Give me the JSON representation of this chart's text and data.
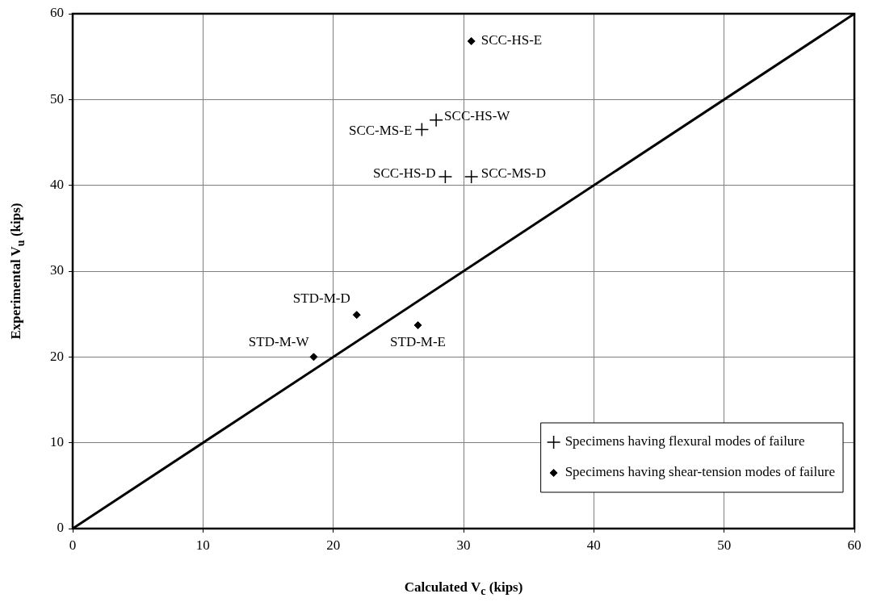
{
  "chart_data": {
    "type": "scatter",
    "xlabel": "Calculated V$_{c}$ (kips)",
    "ylabel": "Experimental V$_{u}$ (kips)",
    "xlim": [
      0,
      60
    ],
    "ylim": [
      0,
      60
    ],
    "xticks": [
      0,
      10,
      20,
      30,
      40,
      50,
      60
    ],
    "yticks": [
      0,
      10,
      20,
      30,
      40,
      50,
      60
    ],
    "grid": true,
    "legend": "bottom right",
    "series": [
      {
        "name": "Specimens having flexural modes of failure",
        "color": "#000000",
        "marker": "cross",
        "x": [
          27.9,
          26.8,
          28.6,
          30.6
        ],
        "values": [
          47.6,
          46.5,
          41.0,
          41.0
        ]
      },
      {
        "name": "Specimens having shear-tension modes of failure",
        "color": "#000000",
        "marker": "diamond",
        "x": [
          30.6,
          21.8,
          26.5,
          18.5
        ],
        "values": [
          56.8,
          24.9,
          23.7,
          20.0
        ]
      },
      {
        "type": "line",
        "color": "#000000",
        "marker": "none",
        "x": [
          0,
          60
        ],
        "values": [
          0,
          60
        ]
      }
    ],
    "annotations": [
      {
        "text": "SCC-HS-E",
        "x": 30.6,
        "y": 56.8
      },
      {
        "text": "SCC-HS-W",
        "x": 27.9,
        "y": 47.6
      },
      {
        "text": "SCC-MS-E",
        "x": 26.8,
        "y": 46.5
      },
      {
        "text": "SCC-HS-D",
        "x": 28.6,
        "y": 41.0
      },
      {
        "text": "SCC-MS-D",
        "x": 30.6,
        "y": 41.0
      },
      {
        "text": "STD-M-D",
        "x": 21.8,
        "y": 24.9
      },
      {
        "text": "STD-M-E",
        "x": 26.5,
        "y": 23.7
      },
      {
        "text": "STD-M-W",
        "x": 18.5,
        "y": 20.0
      }
    ]
  }
}
